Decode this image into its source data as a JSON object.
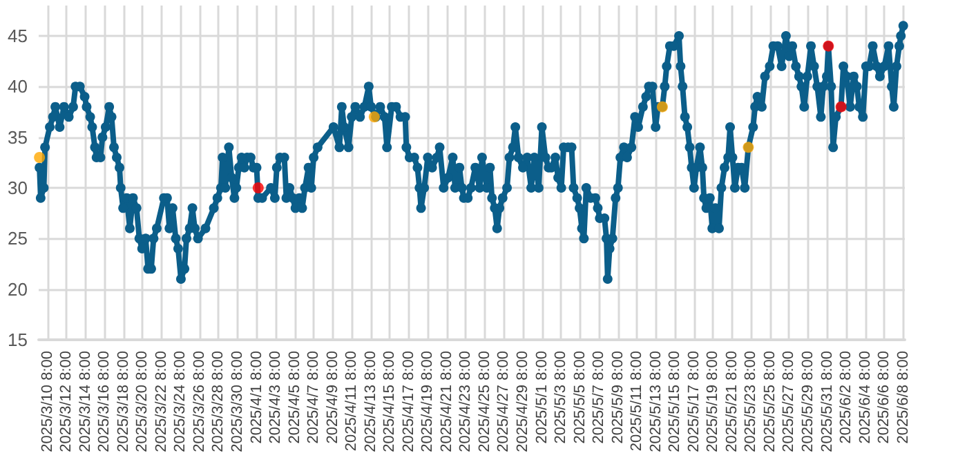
{
  "chart_data": {
    "type": "line",
    "grid": true,
    "marker": "circle",
    "line_style": "solid",
    "xlim": [
      "2025-03-09T10:00",
      "2025-06-08T12:00"
    ],
    "ylim": [
      15,
      48
    ],
    "yticks": [
      15,
      20,
      25,
      30,
      35,
      40,
      45
    ],
    "xticks": [
      {
        "value": "2025-03-10T08:00",
        "label": "2025/3/10 8:00"
      },
      {
        "value": "2025-03-12T08:00",
        "label": "2025/3/12 8:00"
      },
      {
        "value": "2025-03-14T08:00",
        "label": "2025/3/14 8:00"
      },
      {
        "value": "2025-03-16T08:00",
        "label": "2025/3/16 8:00"
      },
      {
        "value": "2025-03-18T08:00",
        "label": "2025/3/18 8:00"
      },
      {
        "value": "2025-03-20T08:00",
        "label": "2025/3/20 8:00"
      },
      {
        "value": "2025-03-22T08:00",
        "label": "2025/3/22 8:00"
      },
      {
        "value": "2025-03-24T08:00",
        "label": "2025/3/24 8:00"
      },
      {
        "value": "2025-03-26T08:00",
        "label": "2025/3/26 8:00"
      },
      {
        "value": "2025-03-28T08:00",
        "label": "2025/3/28 8:00"
      },
      {
        "value": "2025-03-30T08:00",
        "label": "2025/3/30 8:00"
      },
      {
        "value": "2025-04-01T08:00",
        "label": "2025/4/1 8:00"
      },
      {
        "value": "2025-04-03T08:00",
        "label": "2025/4/3 8:00"
      },
      {
        "value": "2025-04-05T08:00",
        "label": "2025/4/5 8:00"
      },
      {
        "value": "2025-04-07T08:00",
        "label": "2025/4/7 8:00"
      },
      {
        "value": "2025-04-09T08:00",
        "label": "2025/4/9 8:00"
      },
      {
        "value": "2025-04-11T08:00",
        "label": "2025/4/11 8:00"
      },
      {
        "value": "2025-04-13T08:00",
        "label": "2025/4/13 8:00"
      },
      {
        "value": "2025-04-15T08:00",
        "label": "2025/4/15 8:00"
      },
      {
        "value": "2025-04-17T08:00",
        "label": "2025/4/17 8:00"
      },
      {
        "value": "2025-04-19T08:00",
        "label": "2025/4/19 8:00"
      },
      {
        "value": "2025-04-21T08:00",
        "label": "2025/4/21 8:00"
      },
      {
        "value": "2025-04-23T08:00",
        "label": "2025/4/23 8:00"
      },
      {
        "value": "2025-04-25T08:00",
        "label": "2025/4/25 8:00"
      },
      {
        "value": "2025-04-27T08:00",
        "label": "2025/4/27 8:00"
      },
      {
        "value": "2025-04-29T08:00",
        "label": "2025/4/29 8:00"
      },
      {
        "value": "2025-05-01T08:00",
        "label": "2025/5/1 8:00"
      },
      {
        "value": "2025-05-03T08:00",
        "label": "2025/5/3 8:00"
      },
      {
        "value": "2025-05-05T08:00",
        "label": "2025/5/5 8:00"
      },
      {
        "value": "2025-05-07T08:00",
        "label": "2025/5/7 8:00"
      },
      {
        "value": "2025-05-09T08:00",
        "label": "2025/5/9 8:00"
      },
      {
        "value": "2025-05-11T08:00",
        "label": "2025/5/11 8:00"
      },
      {
        "value": "2025-05-13T08:00",
        "label": "2025/5/13 8:00"
      },
      {
        "value": "2025-05-15T08:00",
        "label": "2025/5/15 8:00"
      },
      {
        "value": "2025-05-17T08:00",
        "label": "2025/5/17 8:00"
      },
      {
        "value": "2025-05-19T08:00",
        "label": "2025/5/19 8:00"
      },
      {
        "value": "2025-05-21T08:00",
        "label": "2025/5/21 8:00"
      },
      {
        "value": "2025-05-23T08:00",
        "label": "2025/5/23 8:00"
      },
      {
        "value": "2025-05-25T08:00",
        "label": "2025/5/25 8:00"
      },
      {
        "value": "2025-05-27T08:00",
        "label": "2025/5/27 8:00"
      },
      {
        "value": "2025-05-29T08:00",
        "label": "2025/5/29 8:00"
      },
      {
        "value": "2025-05-31T08:00",
        "label": "2025/5/31 8:00"
      },
      {
        "value": "2025-06-02T08:00",
        "label": "2025/6/2 8:00"
      },
      {
        "value": "2025-06-04T08:00",
        "label": "2025/6/4 8:00"
      },
      {
        "value": "2025-06-06T08:00",
        "label": "2025/6/6 8:00"
      },
      {
        "value": "2025-06-08T08:00",
        "label": "2025/6/8 8:00"
      }
    ],
    "series": [
      {
        "color": "#0b5e8a",
        "x": [
          "2025-03-09T12:00",
          "2025-03-09T15:00",
          "2025-03-09T23:00",
          "2025-03-10T02:00",
          "2025-03-10T14:00",
          "2025-03-10T22:00",
          "2025-03-11T04:00",
          "2025-03-11T15:00",
          "2025-03-12T02:00",
          "2025-03-12T14:00",
          "2025-03-13T01:00",
          "2025-03-13T07:00",
          "2025-03-13T18:00",
          "2025-03-14T06:00",
          "2025-03-14T11:00",
          "2025-03-14T20:00",
          "2025-03-15T01:00",
          "2025-03-15T08:00",
          "2025-03-15T12:00",
          "2025-03-15T22:00",
          "2025-03-16T03:00",
          "2025-03-16T11:00",
          "2025-03-16T20:00",
          "2025-03-17T02:00",
          "2025-03-17T08:00",
          "2025-03-17T15:00",
          "2025-03-17T22:00",
          "2025-03-18T01:00",
          "2025-03-18T07:00",
          "2025-03-18T16:00",
          "2025-03-19T00:00",
          "2025-03-19T08:00",
          "2025-03-19T17:00",
          "2025-03-20T00:00",
          "2025-03-20T07:00",
          "2025-03-20T16:00",
          "2025-03-20T22:00",
          "2025-03-21T06:00",
          "2025-03-21T12:00",
          "2025-03-21T20:00",
          "2025-03-22T14:00",
          "2025-03-22T22:00",
          "2025-03-23T04:00",
          "2025-03-23T12:00",
          "2025-03-23T20:00",
          "2025-03-24T02:00",
          "2025-03-24T09:00",
          "2025-03-24T18:00",
          "2025-03-24T23:00",
          "2025-03-25T07:00",
          "2025-03-25T14:00",
          "2025-03-25T20:00",
          "2025-03-26T04:00",
          "2025-03-26T23:00",
          "2025-03-27T20:00",
          "2025-03-28T05:00",
          "2025-03-28T14:00",
          "2025-03-28T18:00",
          "2025-03-29T01:00",
          "2025-03-29T10:00",
          "2025-03-29T17:00",
          "2025-03-30T00:00",
          "2025-03-30T05:00",
          "2025-03-30T11:00",
          "2025-03-30T18:00",
          "2025-03-31T01:00",
          "2025-03-31T08:00",
          "2025-03-31T17:00",
          "2025-04-01T00:00",
          "2025-04-01T08:00",
          "2025-04-01T12:00",
          "2025-04-01T22:00",
          "2025-04-02T20:00",
          "2025-04-03T06:00",
          "2025-04-03T11:00",
          "2025-04-03T19:00",
          "2025-04-04T06:00",
          "2025-04-04T11:00",
          "2025-04-04T19:00",
          "2025-04-05T03:00",
          "2025-04-05T10:00",
          "2025-04-05T20:00",
          "2025-04-06T03:00",
          "2025-04-06T10:00",
          "2025-04-06T19:00",
          "2025-04-07T02:00",
          "2025-04-07T08:00",
          "2025-04-07T18:00",
          "2025-04-09T10:00",
          "2025-04-10T01:00",
          "2025-04-10T07:00",
          "2025-04-10T13:00",
          "2025-04-11T00:00",
          "2025-04-11T08:00",
          "2025-04-11T17:00",
          "2025-04-12T05:00",
          "2025-04-12T16:00",
          "2025-04-13T03:00",
          "2025-04-13T09:00",
          "2025-04-13T21:00",
          "2025-04-14T08:00",
          "2025-04-14T19:00",
          "2025-04-15T01:00",
          "2025-04-15T13:00",
          "2025-04-16T00:00",
          "2025-04-16T11:00",
          "2025-04-16T23:00",
          "2025-04-17T02:00",
          "2025-04-17T10:00",
          "2025-04-17T22:00",
          "2025-04-18T06:00",
          "2025-04-18T11:00",
          "2025-04-18T15:00",
          "2025-04-18T23:00",
          "2025-04-19T08:00",
          "2025-04-19T19:00",
          "2025-04-20T07:00",
          "2025-04-20T14:00",
          "2025-04-21T00:00",
          "2025-04-21T11:00",
          "2025-04-21T23:00",
          "2025-04-22T05:00",
          "2025-04-22T16:00",
          "2025-04-22T22:00",
          "2025-04-23T03:00",
          "2025-04-23T13:00",
          "2025-04-23T21:00",
          "2025-04-24T08:00",
          "2025-04-24T19:00",
          "2025-04-25T01:00",
          "2025-04-25T13:00",
          "2025-04-25T21:00",
          "2025-04-26T02:00",
          "2025-04-26T09:00",
          "2025-04-26T15:00",
          "2025-04-26T21:00",
          "2025-04-27T05:00",
          "2025-04-27T16:00",
          "2025-04-27T22:00",
          "2025-04-28T07:00",
          "2025-04-28T13:00",
          "2025-04-28T21:00",
          "2025-04-29T08:00",
          "2025-04-29T19:00",
          "2025-04-30T05:00",
          "2025-04-30T13:00",
          "2025-05-01T00:00",
          "2025-05-01T08:00",
          "2025-05-01T17:00",
          "2025-05-02T01:00",
          "2025-05-02T08:00",
          "2025-05-02T18:00",
          "2025-05-03T01:00",
          "2025-05-03T09:00",
          "2025-05-03T15:00",
          "2025-05-04T02:00",
          "2025-05-04T11:00",
          "2025-05-04T16:00",
          "2025-05-05T01:00",
          "2025-05-05T07:00",
          "2025-05-05T13:00",
          "2025-05-05T18:00",
          "2025-05-06T00:00",
          "2025-05-06T11:00",
          "2025-05-06T23:00",
          "2025-05-07T05:00",
          "2025-05-07T10:00",
          "2025-05-07T22:00",
          "2025-05-08T03:00",
          "2025-05-08T06:00",
          "2025-05-08T11:00",
          "2025-05-08T18:00",
          "2025-05-09T02:00",
          "2025-05-09T08:00",
          "2025-05-09T14:00",
          "2025-05-09T23:00",
          "2025-05-10T07:00",
          "2025-05-10T18:00",
          "2025-05-11T03:00",
          "2025-05-11T11:00",
          "2025-05-11T23:00",
          "2025-05-12T07:00",
          "2025-05-12T14:00",
          "2025-05-12T23:00",
          "2025-05-13T07:00",
          "2025-05-13T13:00",
          "2025-05-14T00:00",
          "2025-05-14T06:00",
          "2025-05-14T11:00",
          "2025-05-14T19:00",
          "2025-05-15T05:00",
          "2025-05-15T18:00",
          "2025-05-15T22:00",
          "2025-05-16T03:00",
          "2025-05-16T09:00",
          "2025-05-16T15:00",
          "2025-05-16T21:00",
          "2025-05-17T02:00",
          "2025-05-17T08:00",
          "2025-05-17T14:00",
          "2025-05-17T23:00",
          "2025-05-18T05:00",
          "2025-05-18T09:00",
          "2025-05-18T15:00",
          "2025-05-19T00:00",
          "2025-05-19T06:00",
          "2025-05-19T14:00",
          "2025-05-19T23:00",
          "2025-05-20T05:00",
          "2025-05-20T13:00",
          "2025-05-20T22:00",
          "2025-05-21T03:00",
          "2025-05-21T09:00",
          "2025-05-21T15:00",
          "2025-05-21T23:00",
          "2025-05-22T08:00",
          "2025-05-22T16:00",
          "2025-05-23T01:00",
          "2025-05-23T13:00",
          "2025-05-23T18:00",
          "2025-05-24T00:00",
          "2025-05-24T11:00",
          "2025-05-24T19:00",
          "2025-05-25T07:00",
          "2025-05-25T16:00",
          "2025-05-26T03:00",
          "2025-05-26T13:00",
          "2025-05-27T00:00",
          "2025-05-27T08:00",
          "2025-05-27T16:00",
          "2025-05-28T01:00",
          "2025-05-28T09:00",
          "2025-05-28T15:00",
          "2025-05-28T22:00",
          "2025-05-29T06:00",
          "2025-05-29T15:00",
          "2025-05-29T23:00",
          "2025-05-30T07:00",
          "2025-05-30T16:00",
          "2025-05-30T22:00",
          "2025-05-31T07:00",
          "2025-05-31T11:00",
          "2025-05-31T18:00",
          "2025-05-31T23:00",
          "2025-06-01T06:00",
          "2025-06-01T19:00",
          "2025-06-02T01:00",
          "2025-06-02T09:00",
          "2025-06-02T18:00",
          "2025-06-03T03:00",
          "2025-06-03T11:00",
          "2025-06-03T17:00",
          "2025-06-04T02:00",
          "2025-06-04T10:00",
          "2025-06-04T18:00",
          "2025-06-05T03:00",
          "2025-06-05T13:00",
          "2025-06-05T21:00",
          "2025-06-06T08:00",
          "2025-06-06T19:00",
          "2025-06-07T03:00",
          "2025-06-07T08:00",
          "2025-06-07T15:00",
          "2025-06-07T22:00",
          "2025-06-08T02:00",
          "2025-06-08T08:00"
        ],
        "values": [
          32,
          29,
          30,
          34,
          36,
          37,
          38,
          36,
          38,
          37,
          38,
          40,
          40,
          39,
          38,
          37,
          36,
          34,
          33,
          33,
          35,
          36,
          38,
          37,
          34,
          33,
          32,
          30,
          28,
          29,
          26,
          29,
          28,
          25,
          24,
          25,
          22,
          22,
          25,
          26,
          29,
          29,
          26,
          28,
          25,
          24,
          21,
          22,
          25,
          26,
          28,
          26,
          25,
          26,
          28,
          29,
          30,
          33,
          30,
          34,
          31,
          29,
          30,
          32,
          33,
          32,
          33,
          33,
          32,
          32,
          29,
          29,
          30,
          29,
          32,
          33,
          33,
          29,
          30,
          29,
          28,
          29,
          28,
          30,
          32,
          30,
          33,
          34,
          36,
          34,
          38,
          36,
          34,
          37,
          38,
          37,
          38,
          40,
          38,
          37,
          38,
          37,
          34,
          38,
          38,
          37,
          37,
          34,
          33,
          33,
          32,
          30,
          28,
          30,
          33,
          32,
          33,
          34,
          30,
          31,
          33,
          30,
          32,
          30,
          29,
          29,
          30,
          32,
          30,
          33,
          30,
          32,
          29,
          28,
          26,
          28,
          29,
          30,
          33,
          34,
          36,
          33,
          32,
          33,
          30,
          33,
          30,
          36,
          33,
          32,
          32,
          33,
          31,
          30,
          34,
          34,
          34,
          30,
          29,
          28,
          26,
          25,
          30,
          29,
          29,
          28,
          27,
          27,
          25,
          21,
          24,
          25,
          29,
          30,
          33,
          34,
          33,
          34,
          37,
          36,
          38,
          39,
          40,
          40,
          36,
          38,
          38,
          40,
          42,
          44,
          44,
          45,
          42,
          40,
          37,
          36,
          34,
          32,
          30,
          32,
          34,
          32,
          29,
          28,
          29,
          26,
          28,
          26,
          30,
          32,
          33,
          36,
          33,
          30,
          32,
          32,
          30,
          34,
          36,
          38,
          39,
          38,
          41,
          42,
          44,
          44,
          42,
          45,
          43,
          44,
          42,
          41,
          40,
          38,
          41,
          44,
          42,
          40,
          37,
          40,
          41,
          44,
          40,
          34,
          37,
          38,
          42,
          41,
          38,
          41,
          40,
          38,
          37,
          42,
          42,
          44,
          42,
          41,
          42,
          44,
          40,
          38,
          42,
          44,
          45,
          46
        ]
      },
      {
        "type": "scatter",
        "color": "#ffa800",
        "x": [
          "2025-03-09T12:00",
          "2025-04-13T17:00",
          "2025-05-14T00:00",
          "2025-05-23T01:00"
        ],
        "values": [
          33,
          37,
          38,
          34
        ]
      },
      {
        "type": "scatter",
        "color": "#ff0000",
        "x": [
          "2025-04-01T12:00",
          "2025-05-31T11:00",
          "2025-06-01T19:00"
        ],
        "values": [
          30,
          44,
          38
        ]
      }
    ]
  }
}
